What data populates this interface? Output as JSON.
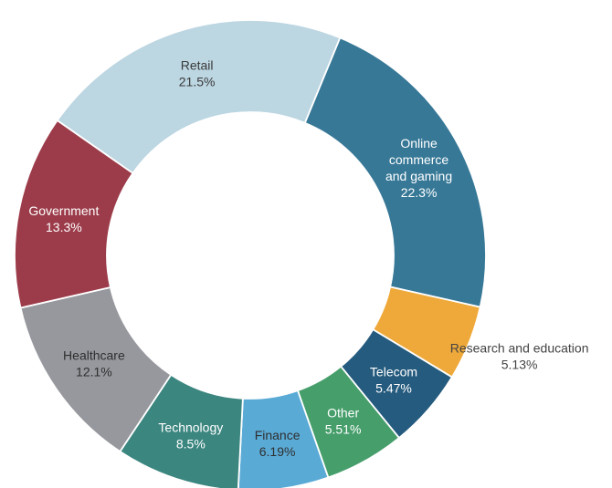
{
  "chart_data": {
    "type": "pie",
    "title": "",
    "slices": [
      {
        "label": [
          "Retail"
        ],
        "value_label": "21.5%",
        "value": 21.5,
        "color": "#bcd6e2",
        "text_color": "#3a3a3a",
        "outside": false
      },
      {
        "label": [
          "Online",
          "commerce",
          "and gaming"
        ],
        "value_label": "22.3%",
        "value": 22.3,
        "color": "#377897",
        "text_color": "#ffffff",
        "outside": false
      },
      {
        "label": [
          "Research and education"
        ],
        "value_label": "5.13%",
        "value": 5.13,
        "color": "#efa93a",
        "text_color": "#444444",
        "outside": true
      },
      {
        "label": [
          "Telecom"
        ],
        "value_label": "5.47%",
        "value": 5.47,
        "color": "#255b7e",
        "text_color": "#ffffff",
        "outside": false
      },
      {
        "label": [
          "Other"
        ],
        "value_label": "5.51%",
        "value": 5.51,
        "color": "#469e6b",
        "text_color": "#ffffff",
        "outside": false
      },
      {
        "label": [
          "Finance"
        ],
        "value_label": "6.19%",
        "value": 6.19,
        "color": "#5aaad6",
        "text_color": "#2f2f2f",
        "outside": false
      },
      {
        "label": [
          "Technology"
        ],
        "value_label": "8.5%",
        "value": 8.5,
        "color": "#3c8680",
        "text_color": "#ffffff",
        "outside": false
      },
      {
        "label": [
          "Healthcare"
        ],
        "value_label": "12.1%",
        "value": 12.1,
        "color": "#96989d",
        "text_color": "#2f2f2f",
        "outside": false
      },
      {
        "label": [
          "Government"
        ],
        "value_label": "13.3%",
        "value": 13.3,
        "color": "#9c3c4a",
        "text_color": "#ffffff",
        "outside": false
      }
    ]
  }
}
